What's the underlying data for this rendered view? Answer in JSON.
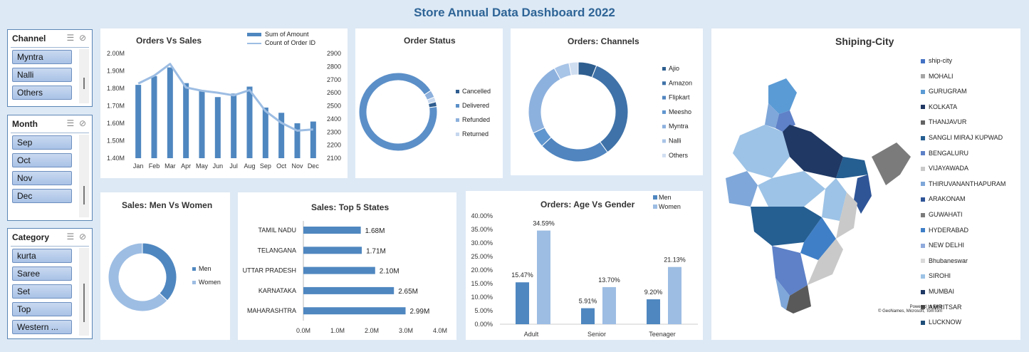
{
  "dashboard_title": "Store Annual Data Dashboard 2022",
  "colors": {
    "primary": "#4f87c0",
    "light": "#9dbde3",
    "dark": "#1f4e79",
    "mid": "#2e6fb0"
  },
  "slicers": {
    "channel": {
      "title": "Channel",
      "items": [
        "Myntra",
        "Nalli",
        "Others"
      ]
    },
    "month": {
      "title": "Month",
      "items": [
        "Sep",
        "Oct",
        "Nov",
        "Dec"
      ]
    },
    "category": {
      "title": "Category",
      "items": [
        "kurta",
        "Saree",
        "Set",
        "Top",
        "Western ..."
      ]
    }
  },
  "charts": {
    "orders_vs_sales": {
      "title": "Orders Vs Sales",
      "legend": [
        "Sum of Amount",
        "Count of Order ID"
      ],
      "left_ticks": [
        "2.00M",
        "1.90M",
        "1.80M",
        "1.70M",
        "1.60M",
        "1.50M",
        "1.40M"
      ],
      "right_ticks": [
        "2900",
        "2800",
        "2700",
        "2600",
        "2500",
        "2400",
        "2300",
        "2200",
        "2100"
      ]
    },
    "order_status": {
      "title": "Order Status"
    },
    "orders_channels": {
      "title": "Orders: Channels"
    },
    "shipping_city": {
      "title": "Shiping-City",
      "legend": [
        "ship-city",
        "MOHALI",
        "GURUGRAM",
        "KOLKATA",
        "THANJAVUR",
        "SANGLI MIRAJ KUPWAD",
        "BENGALURU",
        "VIJAYAWADA",
        "THIRUVANANTHAPURAM",
        "ARAKONAM",
        "GUWAHATI",
        "HYDERABAD",
        "NEW DELHI",
        "Bhubaneswar",
        "SIROHI",
        "MUMBAI",
        "AMRITSAR",
        "LUCKNOW"
      ],
      "legend_colors": [
        "#4472c4",
        "#a5a5a5",
        "#5b9bd5",
        "#203864",
        "#636363",
        "#255e91",
        "#5e81c8",
        "#c9c9c9",
        "#7fa7d9",
        "#2f5597",
        "#7b7b7b",
        "#3f7fc7",
        "#8faadc",
        "#d9d9d9",
        "#9dc3e6",
        "#1f3864",
        "#595959",
        "#1f4e79"
      ],
      "credit_line1": "Powered by Bing",
      "credit_line2": "© GeoNames, Microsoft, TomTom"
    },
    "men_vs_women": {
      "title": "Sales: Men Vs Women"
    },
    "top5_states": {
      "title": "Sales: Top 5 States",
      "xticks": [
        "0.0M",
        "1.0M",
        "2.0M",
        "3.0M",
        "4.0M"
      ]
    },
    "age_vs_gender": {
      "title": "Orders: Age Vs Gender",
      "yticks": [
        "40.00%",
        "35.00%",
        "30.00%",
        "25.00%",
        "20.00%",
        "15.00%",
        "10.00%",
        "5.00%",
        "0.00%"
      ]
    }
  },
  "chart_data": [
    {
      "type": "bar",
      "title": "Orders Vs Sales",
      "categories": [
        "Jan",
        "Feb",
        "Mar",
        "Apr",
        "May",
        "Jun",
        "Jul",
        "Aug",
        "Sep",
        "Oct",
        "Nov",
        "Dec"
      ],
      "series": [
        {
          "name": "Sum of Amount",
          "axis": "left",
          "type": "bar",
          "values": [
            1.82,
            1.87,
            1.92,
            1.83,
            1.79,
            1.75,
            1.77,
            1.81,
            1.69,
            1.66,
            1.6,
            1.61
          ]
        },
        {
          "name": "Count of Order ID",
          "axis": "right",
          "type": "line",
          "values": [
            2670,
            2730,
            2820,
            2640,
            2615,
            2600,
            2580,
            2620,
            2460,
            2370,
            2310,
            2320
          ]
        }
      ],
      "ylim": [
        1.4,
        2.0
      ],
      "y2lim": [
        2100,
        2900
      ]
    },
    {
      "type": "pie",
      "title": "Order Status",
      "labels": [
        "Cancelled",
        "Delivered",
        "Refunded",
        "Returned"
      ],
      "values": [
        2,
        93,
        3,
        2
      ],
      "colors": [
        "#2f5d8f",
        "#5b8fc8",
        "#8db0dc",
        "#c5d7ee"
      ]
    },
    {
      "type": "pie",
      "title": "Orders: Channels",
      "labels": [
        "Ajio",
        "Amazon",
        "Flipkart",
        "Meesho",
        "Myntra",
        "Nalli",
        "Others"
      ],
      "values": [
        6,
        34,
        23,
        5,
        24,
        5,
        3
      ],
      "colors": [
        "#2e5e8f",
        "#3f72a8",
        "#5085bf",
        "#6096cf",
        "#8db1de",
        "#a8c4e7",
        "#d0def1"
      ]
    },
    {
      "type": "pie",
      "title": "Sales: Men Vs Women",
      "labels": [
        "Men",
        "Women"
      ],
      "values": [
        37,
        63
      ],
      "colors": [
        "#4f87c0",
        "#9dbde3"
      ]
    },
    {
      "type": "bar",
      "title": "Sales: Top 5 States",
      "orientation": "horizontal",
      "categories": [
        "TAMIL NADU",
        "TELANGANA",
        "UTTAR PRADESH",
        "KARNATAKA",
        "MAHARASHTRA"
      ],
      "values": [
        1.68,
        1.71,
        2.1,
        2.65,
        2.99
      ],
      "data_labels": [
        "1.68M",
        "1.71M",
        "2.10M",
        "2.65M",
        "2.99M"
      ],
      "xlim": [
        0,
        4
      ]
    },
    {
      "type": "bar",
      "title": "Orders: Age Vs Gender",
      "categories": [
        "Adult",
        "Senior",
        "Teenager"
      ],
      "series": [
        {
          "name": "Men",
          "values": [
            15.47,
            5.91,
            9.2
          ],
          "labels": [
            "15.47%",
            "5.91%",
            "9.20%"
          ]
        },
        {
          "name": "Women",
          "values": [
            34.59,
            13.7,
            21.13
          ],
          "labels": [
            "34.59%",
            "13.70%",
            "21.13%"
          ]
        }
      ],
      "ylim": [
        0,
        40
      ]
    }
  ]
}
